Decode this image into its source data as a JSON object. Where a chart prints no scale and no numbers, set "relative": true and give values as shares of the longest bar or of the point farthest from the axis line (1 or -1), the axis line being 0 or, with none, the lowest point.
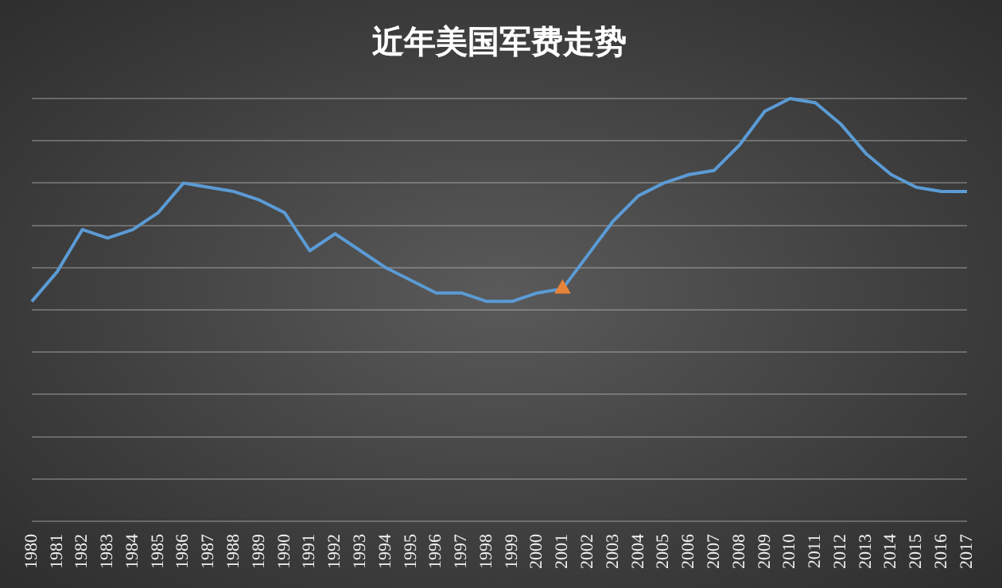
{
  "chart_data": {
    "type": "line",
    "title": "近年美国军费走势",
    "relative": true,
    "grid": "y",
    "legend": false,
    "marker": "none",
    "line_style": "solid",
    "categories": [
      "1980",
      "1981",
      "1982",
      "1983",
      "1984",
      "1985",
      "1986",
      "1987",
      "1988",
      "1989",
      "1990",
      "1991",
      "1992",
      "1993",
      "1994",
      "1995",
      "1996",
      "1997",
      "1998",
      "1999",
      "2000",
      "2001",
      "2002",
      "2003",
      "2004",
      "2005",
      "2006",
      "2007",
      "2008",
      "2009",
      "2010",
      "2011",
      "2012",
      "2013",
      "2014",
      "2015",
      "2016",
      "2017"
    ],
    "series": [
      {
        "color": "#5b9bd5",
        "values": [
          0.52,
          0.59,
          0.69,
          0.67,
          0.69,
          0.73,
          0.8,
          0.79,
          0.78,
          0.76,
          0.73,
          0.64,
          0.68,
          0.64,
          0.6,
          0.57,
          0.54,
          0.54,
          0.52,
          0.52,
          0.54,
          0.55,
          0.63,
          0.71,
          0.77,
          0.8,
          0.82,
          0.83,
          0.89,
          0.97,
          1,
          0.99,
          0.94,
          0.87,
          0.82,
          0.79,
          0.78,
          0.78
        ]
      },
      {
        "type": "scatter",
        "marker": "triangle",
        "color": "#e8833a",
        "values": [
          null,
          null,
          null,
          null,
          null,
          null,
          null,
          null,
          null,
          null,
          null,
          null,
          null,
          null,
          null,
          null,
          null,
          null,
          null,
          null,
          null,
          0.55,
          null,
          null,
          null,
          null,
          null,
          null,
          null,
          null,
          null,
          null,
          null,
          null,
          null,
          null,
          null,
          null
        ]
      }
    ]
  }
}
